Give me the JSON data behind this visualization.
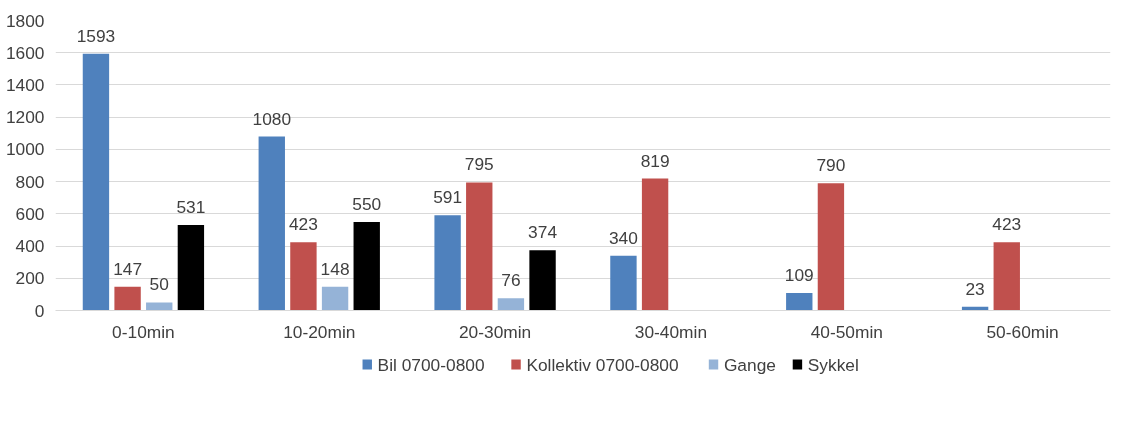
{
  "chart_data": {
    "type": "bar",
    "categories": [
      "0-10min",
      "10-20min",
      "20-30min",
      "30-40min",
      "40-50min",
      "50-60min"
    ],
    "series": [
      {
        "name": "Bil 0700-0800",
        "color": "#4f81bd",
        "values": [
          1593,
          1080,
          591,
          340,
          109,
          23
        ]
      },
      {
        "name": "Kollektiv 0700-0800",
        "color": "#c0504d",
        "values": [
          147,
          423,
          795,
          819,
          790,
          423
        ]
      },
      {
        "name": "Gange",
        "color": "#95b3d7",
        "values": [
          50,
          148,
          76,
          null,
          null,
          null
        ]
      },
      {
        "name": "Sykkel",
        "color": "#000000",
        "values": [
          531,
          550,
          374,
          null,
          null,
          null
        ]
      }
    ],
    "ylim": [
      0,
      1800
    ],
    "yticks": [
      0,
      200,
      400,
      600,
      800,
      1000,
      1200,
      1400,
      1600,
      1800
    ],
    "grid": "y",
    "legend": "bottom",
    "data_labels": true
  }
}
